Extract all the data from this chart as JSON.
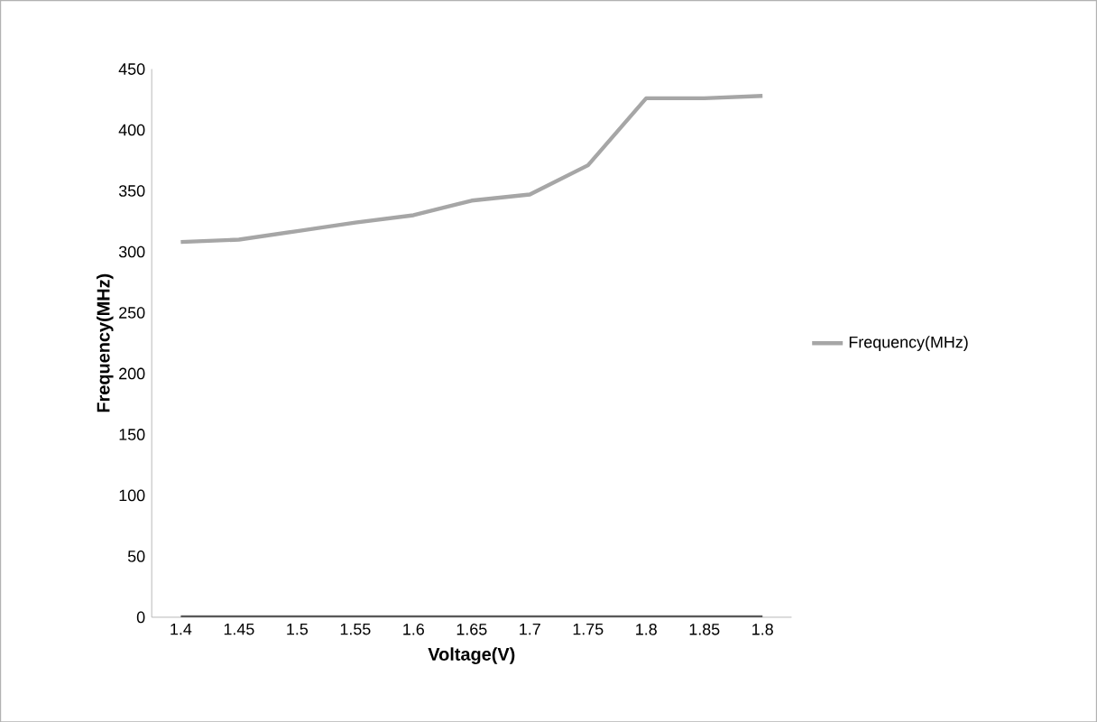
{
  "chart_data": {
    "type": "line",
    "xlabel": "Voltage(V)",
    "ylabel": "Frequency(MHz)",
    "categories": [
      "1.4",
      "1.45",
      "1.5",
      "1.55",
      "1.6",
      "1.65",
      "1.7",
      "1.75",
      "1.8",
      "1.85",
      "1.8"
    ],
    "series": [
      {
        "name": "Frequency(MHz)",
        "color": "#a6a6a6",
        "values": [
          308,
          310,
          317,
          324,
          330,
          342,
          347,
          371,
          426,
          426,
          428
        ]
      },
      {
        "color": "#595959",
        "values": [
          0,
          0,
          0,
          0,
          0,
          0,
          0,
          0,
          0,
          0,
          0
        ]
      }
    ],
    "ylim": [
      0,
      450
    ],
    "yticks": [
      0,
      50,
      100,
      150,
      200,
      250,
      300,
      350,
      400,
      450
    ],
    "grid": false,
    "legend": "right",
    "marker": "none",
    "line_style": "solid"
  }
}
